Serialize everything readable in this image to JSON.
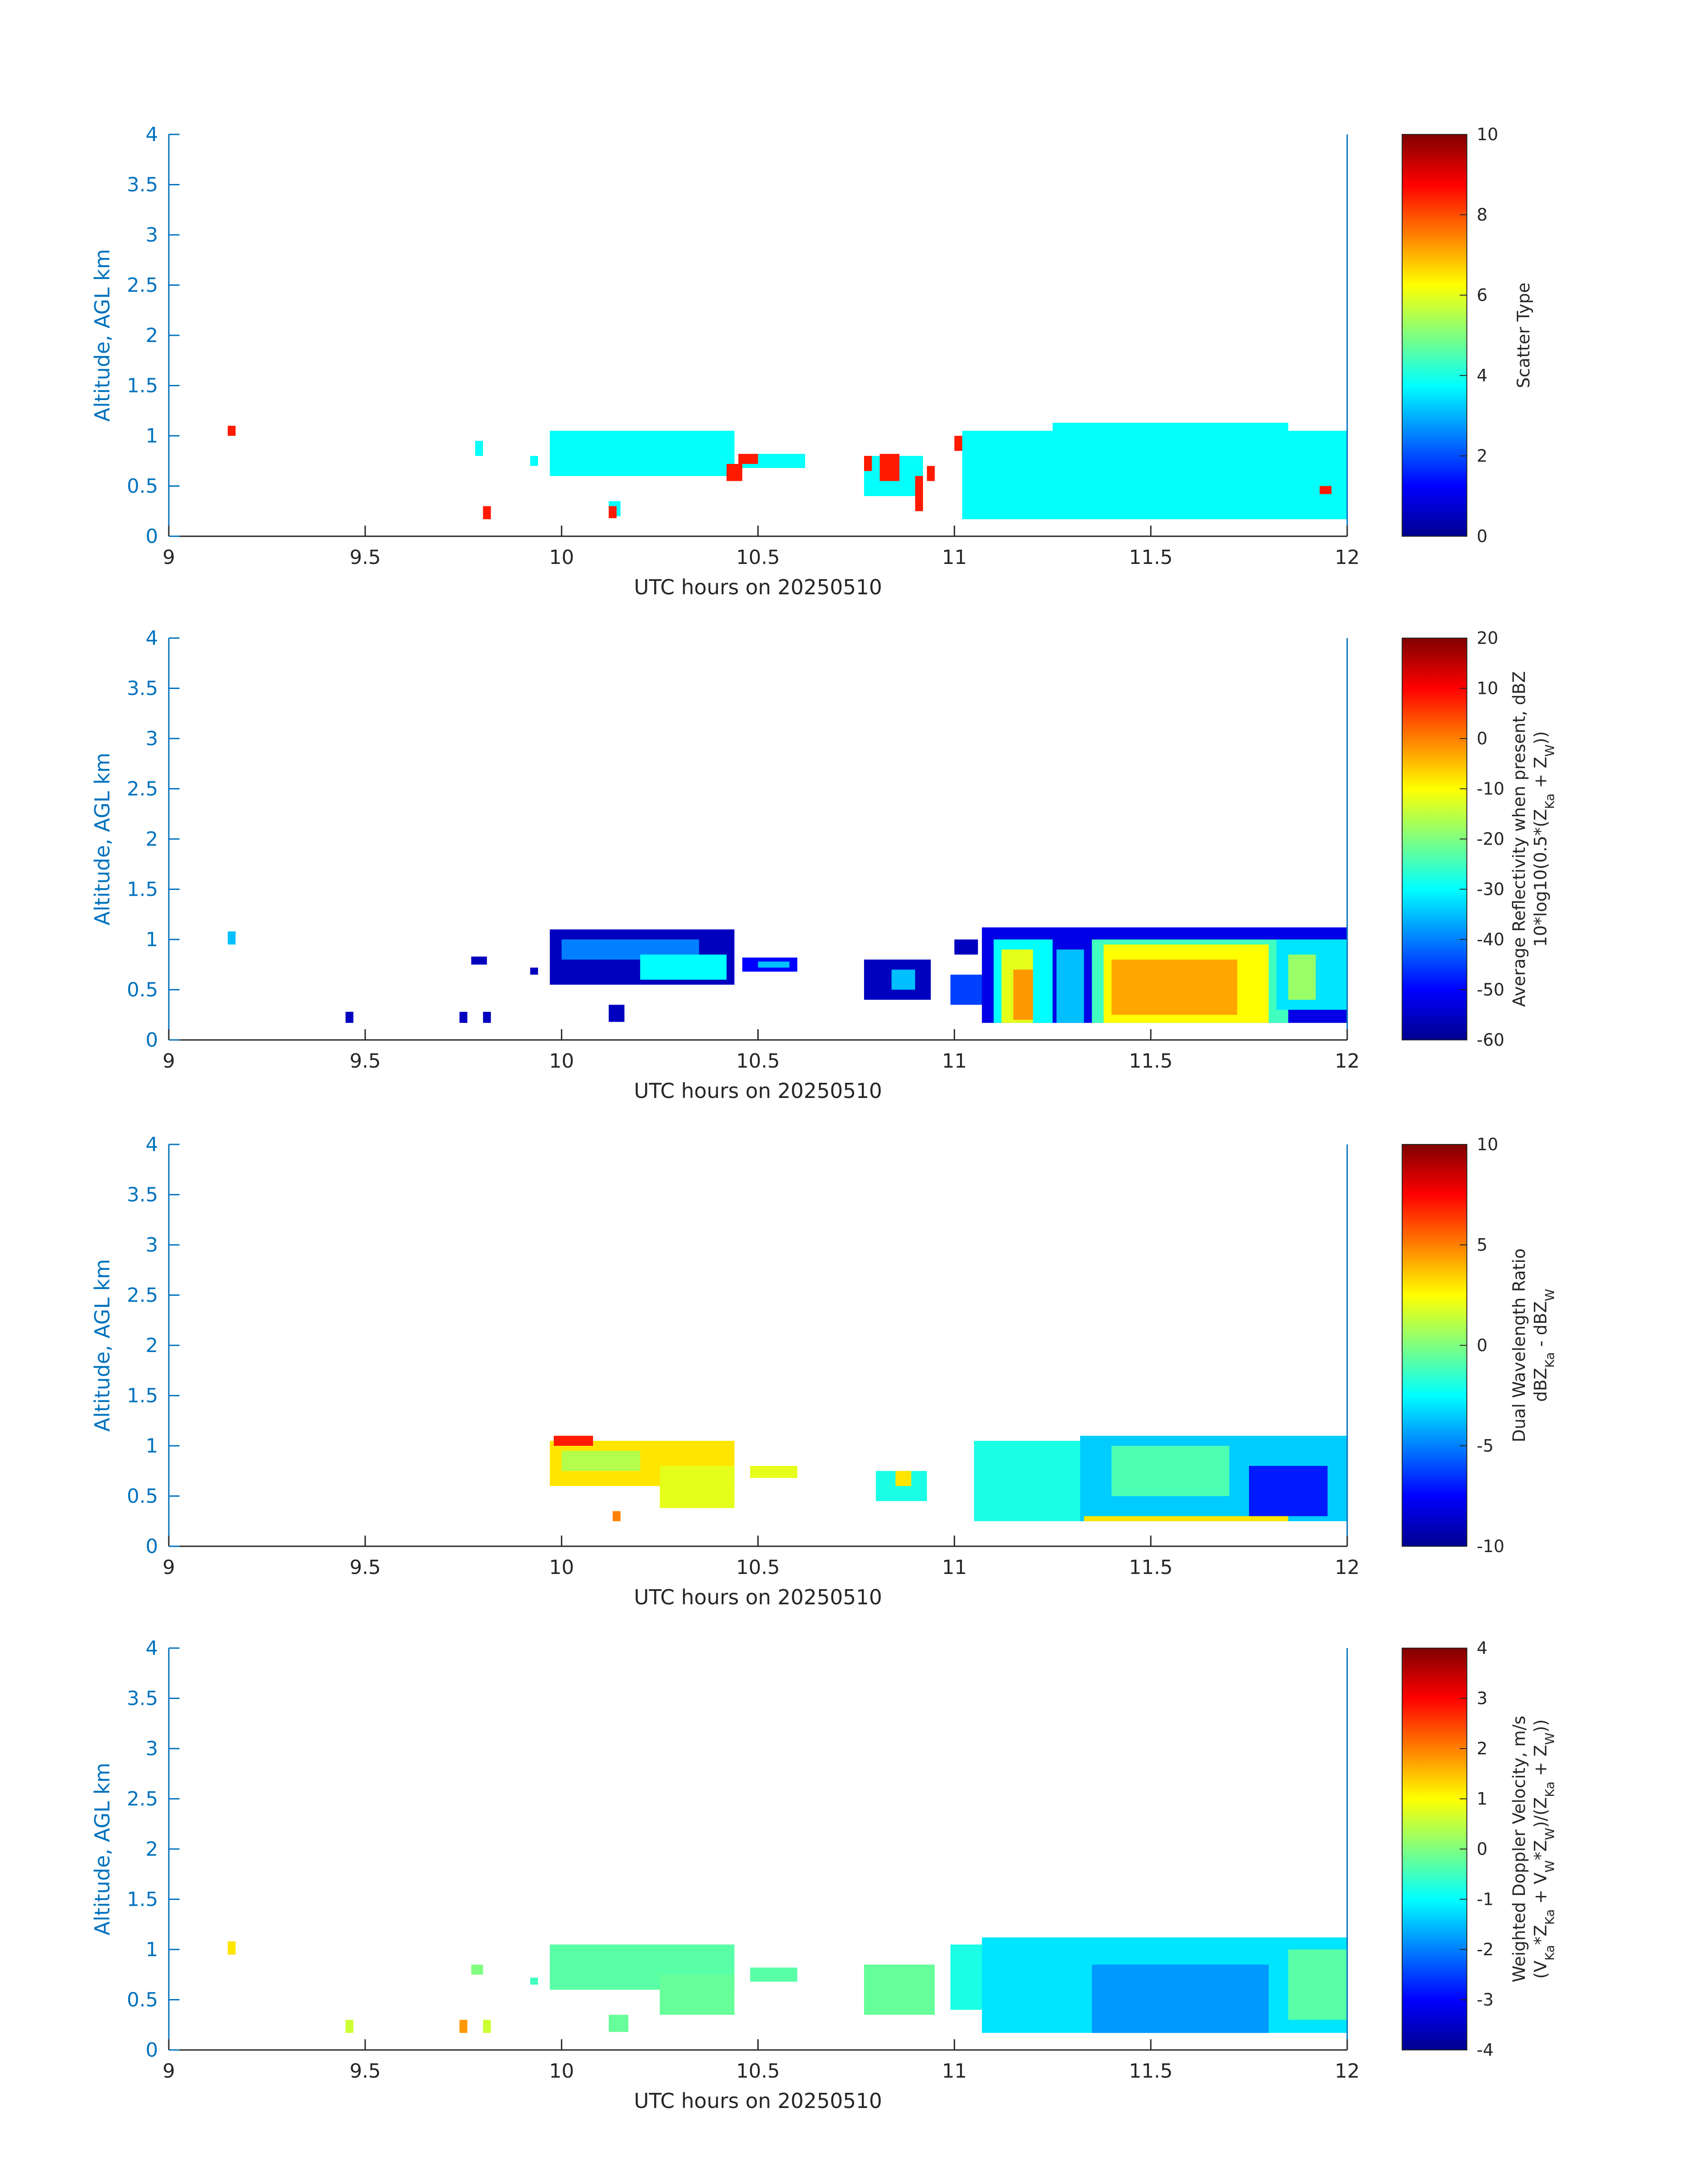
{
  "figure_date_label": "UTC hours on 20250510",
  "chart_data": [
    {
      "type": "heatmap",
      "title": "",
      "xlabel": "UTC hours on 20250510",
      "ylabel": "Altitude, AGL km",
      "xlim": [
        9,
        12
      ],
      "ylim": [
        0,
        4
      ],
      "xticks": [
        "9",
        "9.5",
        "10",
        "10.5",
        "11",
        "11.5",
        "12"
      ],
      "yticks": [
        "0",
        "0.5",
        "1",
        "1.5",
        "2",
        "2.5",
        "3",
        "3.5",
        "4"
      ],
      "colorbar": {
        "label_lines": [
          "Scatter Type"
        ],
        "range": [
          0,
          10
        ],
        "ticks": [
          "0",
          "2",
          "4",
          "6",
          "8",
          "10"
        ]
      },
      "colormap": "jet",
      "regions": [
        {
          "x": [
            9.15,
            9.17
          ],
          "y": [
            1.0,
            1.1
          ],
          "value": 8.5
        },
        {
          "x": [
            9.78,
            9.8
          ],
          "y": [
            0.8,
            0.95
          ],
          "value": 3.8
        },
        {
          "x": [
            9.8,
            9.82
          ],
          "y": [
            0.17,
            0.3
          ],
          "value": 8.5
        },
        {
          "x": [
            9.92,
            9.94
          ],
          "y": [
            0.7,
            0.8
          ],
          "value": 3.8
        },
        {
          "x": [
            9.97,
            10.44
          ],
          "y": [
            0.6,
            1.05
          ],
          "value": 3.8
        },
        {
          "x": [
            10.46,
            10.62
          ],
          "y": [
            0.68,
            0.82
          ],
          "value": 3.8
        },
        {
          "x": [
            10.42,
            10.46
          ],
          "y": [
            0.55,
            0.72
          ],
          "value": 8.5
        },
        {
          "x": [
            10.45,
            10.5
          ],
          "y": [
            0.72,
            0.82
          ],
          "value": 8.5
        },
        {
          "x": [
            10.12,
            10.15
          ],
          "y": [
            0.2,
            0.35
          ],
          "value": 3.8
        },
        {
          "x": [
            10.12,
            10.14
          ],
          "y": [
            0.18,
            0.3
          ],
          "value": 8.5
        },
        {
          "x": [
            10.77,
            10.92
          ],
          "y": [
            0.4,
            0.8
          ],
          "value": 3.8
        },
        {
          "x": [
            10.77,
            10.79
          ],
          "y": [
            0.65,
            0.8
          ],
          "value": 8.5
        },
        {
          "x": [
            10.81,
            10.86
          ],
          "y": [
            0.55,
            0.82
          ],
          "value": 8.5
        },
        {
          "x": [
            10.9,
            10.92
          ],
          "y": [
            0.25,
            0.6
          ],
          "value": 8.5
        },
        {
          "x": [
            10.93,
            10.95
          ],
          "y": [
            0.55,
            0.7
          ],
          "value": 8.5
        },
        {
          "x": [
            11.0,
            11.02
          ],
          "y": [
            0.85,
            1.0
          ],
          "value": 8.5
        },
        {
          "x": [
            11.02,
            11.1
          ],
          "y": [
            0.85,
            1.0
          ],
          "value": 3.8
        },
        {
          "x": [
            11.02,
            12.0
          ],
          "y": [
            0.17,
            1.05
          ],
          "value": 3.8
        },
        {
          "x": [
            11.25,
            11.85
          ],
          "y": [
            1.0,
            1.13
          ],
          "value": 3.8
        },
        {
          "x": [
            11.97,
            12.0
          ],
          "y": [
            0.3,
            0.6
          ],
          "value": 3.8
        },
        {
          "x": [
            11.93,
            11.96
          ],
          "y": [
            0.42,
            0.5
          ],
          "value": 8.5
        }
      ]
    },
    {
      "type": "heatmap",
      "title": "",
      "xlabel": "UTC hours on 20250510",
      "ylabel": "Altitude, AGL km",
      "xlim": [
        9,
        12
      ],
      "ylim": [
        0,
        4
      ],
      "xticks": [
        "9",
        "9.5",
        "10",
        "10.5",
        "11",
        "11.5",
        "12"
      ],
      "yticks": [
        "0",
        "0.5",
        "1",
        "1.5",
        "2",
        "2.5",
        "3",
        "3.5",
        "4"
      ],
      "colorbar": {
        "label_lines": [
          "Average Reflectivity when present, dBZ",
          "10*log10(0.5*(Z",
          "Ka",
          " + Z",
          "W",
          "))"
        ],
        "range": [
          -60,
          20
        ],
        "ticks": [
          "-60",
          "-50",
          "-40",
          "-30",
          "-20",
          "-10",
          "0",
          "10",
          "20"
        ]
      },
      "colormap": "jet",
      "regions": [
        {
          "x": [
            9.15,
            9.17
          ],
          "y": [
            0.95,
            1.08
          ],
          "value": -35
        },
        {
          "x": [
            9.45,
            9.47
          ],
          "y": [
            0.17,
            0.28
          ],
          "value": -55
        },
        {
          "x": [
            9.74,
            9.76
          ],
          "y": [
            0.17,
            0.28
          ],
          "value": -55
        },
        {
          "x": [
            9.8,
            9.82
          ],
          "y": [
            0.17,
            0.28
          ],
          "value": -55
        },
        {
          "x": [
            9.77,
            9.81
          ],
          "y": [
            0.75,
            0.83
          ],
          "value": -55
        },
        {
          "x": [
            9.92,
            9.94
          ],
          "y": [
            0.65,
            0.72
          ],
          "value": -55
        },
        {
          "x": [
            9.97,
            10.44
          ],
          "y": [
            0.55,
            1.1
          ],
          "value": -55
        },
        {
          "x": [
            10.0,
            10.35
          ],
          "y": [
            0.8,
            1.0
          ],
          "value": -40
        },
        {
          "x": [
            10.2,
            10.42
          ],
          "y": [
            0.6,
            0.85
          ],
          "value": -30
        },
        {
          "x": [
            10.12,
            10.16
          ],
          "y": [
            0.18,
            0.35
          ],
          "value": -55
        },
        {
          "x": [
            10.46,
            10.6
          ],
          "y": [
            0.68,
            0.82
          ],
          "value": -50
        },
        {
          "x": [
            10.5,
            10.58
          ],
          "y": [
            0.72,
            0.78
          ],
          "value": -35
        },
        {
          "x": [
            10.77,
            10.94
          ],
          "y": [
            0.4,
            0.8
          ],
          "value": -55
        },
        {
          "x": [
            10.84,
            10.9
          ],
          "y": [
            0.5,
            0.7
          ],
          "value": -35
        },
        {
          "x": [
            11.0,
            11.06
          ],
          "y": [
            0.85,
            1.0
          ],
          "value": -55
        },
        {
          "x": [
            10.99,
            11.09
          ],
          "y": [
            0.35,
            0.65
          ],
          "value": -45
        },
        {
          "x": [
            11.07,
            12.0
          ],
          "y": [
            0.17,
            1.12
          ],
          "value": -52
        },
        {
          "x": [
            11.1,
            11.25
          ],
          "y": [
            0.17,
            1.0
          ],
          "value": -30
        },
        {
          "x": [
            11.12,
            11.2
          ],
          "y": [
            0.17,
            0.9
          ],
          "value": -12
        },
        {
          "x": [
            11.15,
            11.2
          ],
          "y": [
            0.2,
            0.7
          ],
          "value": -2
        },
        {
          "x": [
            11.26,
            11.33
          ],
          "y": [
            0.17,
            0.9
          ],
          "value": -35
        },
        {
          "x": [
            11.35,
            11.85
          ],
          "y": [
            0.17,
            1.0
          ],
          "value": -25
        },
        {
          "x": [
            11.38,
            11.8
          ],
          "y": [
            0.17,
            0.95
          ],
          "value": -10
        },
        {
          "x": [
            11.4,
            11.72
          ],
          "y": [
            0.25,
            0.8
          ],
          "value": -3
        },
        {
          "x": [
            11.82,
            12.0
          ],
          "y": [
            0.3,
            1.0
          ],
          "value": -32
        },
        {
          "x": [
            11.85,
            11.92
          ],
          "y": [
            0.4,
            0.85
          ],
          "value": -18
        }
      ]
    },
    {
      "type": "heatmap",
      "title": "",
      "xlabel": "UTC hours on 20250510",
      "ylabel": "Altitude, AGL km",
      "xlim": [
        9,
        12
      ],
      "ylim": [
        0,
        4
      ],
      "xticks": [
        "9",
        "9.5",
        "10",
        "10.5",
        "11",
        "11.5",
        "12"
      ],
      "yticks": [
        "0",
        "0.5",
        "1",
        "1.5",
        "2",
        "2.5",
        "3",
        "3.5",
        "4"
      ],
      "colorbar": {
        "label_lines": [
          "Dual Wavelength Ratio",
          "dBZ",
          "Ka",
          " - dBZ",
          "W"
        ],
        "range": [
          -10,
          10
        ],
        "ticks": [
          "-10",
          "-5",
          "0",
          "5",
          "10"
        ]
      },
      "colormap": "jet",
      "regions": [
        {
          "x": [
            9.97,
            10.44
          ],
          "y": [
            0.6,
            1.05
          ],
          "value": 3
        },
        {
          "x": [
            10.25,
            10.44
          ],
          "y": [
            0.38,
            0.8
          ],
          "value": 2
        },
        {
          "x": [
            9.98,
            10.08
          ],
          "y": [
            1.0,
            1.1
          ],
          "value": 7
        },
        {
          "x": [
            10.0,
            10.2
          ],
          "y": [
            0.75,
            0.95
          ],
          "value": 1
        },
        {
          "x": [
            10.13,
            10.15
          ],
          "y": [
            0.25,
            0.35
          ],
          "value": 5
        },
        {
          "x": [
            10.48,
            10.6
          ],
          "y": [
            0.68,
            0.8
          ],
          "value": 2
        },
        {
          "x": [
            10.8,
            10.93
          ],
          "y": [
            0.45,
            0.75
          ],
          "value": -2
        },
        {
          "x": [
            10.85,
            10.89
          ],
          "y": [
            0.6,
            0.75
          ],
          "value": 3
        },
        {
          "x": [
            11.05,
            11.32
          ],
          "y": [
            0.25,
            1.05
          ],
          "value": -2
        },
        {
          "x": [
            11.32,
            12.0
          ],
          "y": [
            0.25,
            1.1
          ],
          "value": -3.5
        },
        {
          "x": [
            11.4,
            11.7
          ],
          "y": [
            0.5,
            1.0
          ],
          "value": -1
        },
        {
          "x": [
            11.75,
            11.95
          ],
          "y": [
            0.3,
            0.8
          ],
          "value": -7
        },
        {
          "x": [
            11.33,
            11.85
          ],
          "y": [
            0.25,
            0.3
          ],
          "value": 3
        }
      ]
    },
    {
      "type": "heatmap",
      "title": "",
      "xlabel": "UTC hours on 20250510",
      "ylabel": "Altitude, AGL km",
      "xlim": [
        9,
        12
      ],
      "ylim": [
        0,
        4
      ],
      "xticks": [
        "9",
        "9.5",
        "10",
        "10.5",
        "11",
        "11.5",
        "12"
      ],
      "yticks": [
        "0",
        "0.5",
        "1",
        "1.5",
        "2",
        "2.5",
        "3",
        "3.5",
        "4"
      ],
      "colorbar": {
        "label_lines": [
          "Weighted Doppler Velocity, m/s",
          "(V",
          "Ka",
          "*Z",
          "Ka",
          " + V",
          "W",
          "*Z",
          "W",
          ")/(Z",
          "Ka",
          " + Z",
          "W",
          "))"
        ],
        "range": [
          -4,
          4
        ],
        "ticks": [
          "-4",
          "-3",
          "-2",
          "-1",
          "0",
          "1",
          "2",
          "3",
          "4"
        ]
      },
      "colormap": "jet",
      "regions": [
        {
          "x": [
            9.15,
            9.17
          ],
          "y": [
            0.95,
            1.08
          ],
          "value": 1.2
        },
        {
          "x": [
            9.45,
            9.47
          ],
          "y": [
            0.17,
            0.3
          ],
          "value": 0.6
        },
        {
          "x": [
            9.74,
            9.76
          ],
          "y": [
            0.17,
            0.3
          ],
          "value": 1.8
        },
        {
          "x": [
            9.8,
            9.82
          ],
          "y": [
            0.17,
            0.3
          ],
          "value": 0.6
        },
        {
          "x": [
            9.77,
            9.8
          ],
          "y": [
            0.75,
            0.85
          ],
          "value": 0
        },
        {
          "x": [
            9.92,
            9.94
          ],
          "y": [
            0.65,
            0.72
          ],
          "value": -0.5
        },
        {
          "x": [
            9.97,
            10.44
          ],
          "y": [
            0.6,
            1.05
          ],
          "value": -0.3
        },
        {
          "x": [
            10.25,
            10.44
          ],
          "y": [
            0.35,
            0.75
          ],
          "value": -0.2
        },
        {
          "x": [
            10.12,
            10.17
          ],
          "y": [
            0.18,
            0.35
          ],
          "value": -0.2
        },
        {
          "x": [
            10.48,
            10.6
          ],
          "y": [
            0.68,
            0.82
          ],
          "value": -0.3
        },
        {
          "x": [
            10.77,
            10.95
          ],
          "y": [
            0.35,
            0.85
          ],
          "value": -0.2
        },
        {
          "x": [
            10.99,
            11.35
          ],
          "y": [
            0.4,
            1.05
          ],
          "value": -0.8
        },
        {
          "x": [
            11.07,
            12.0
          ],
          "y": [
            0.17,
            1.12
          ],
          "value": -1.2
        },
        {
          "x": [
            11.35,
            11.8
          ],
          "y": [
            0.17,
            0.85
          ],
          "value": -1.8
        },
        {
          "x": [
            11.85,
            12.0
          ],
          "y": [
            0.3,
            1.0
          ],
          "value": -0.3
        }
      ]
    }
  ]
}
